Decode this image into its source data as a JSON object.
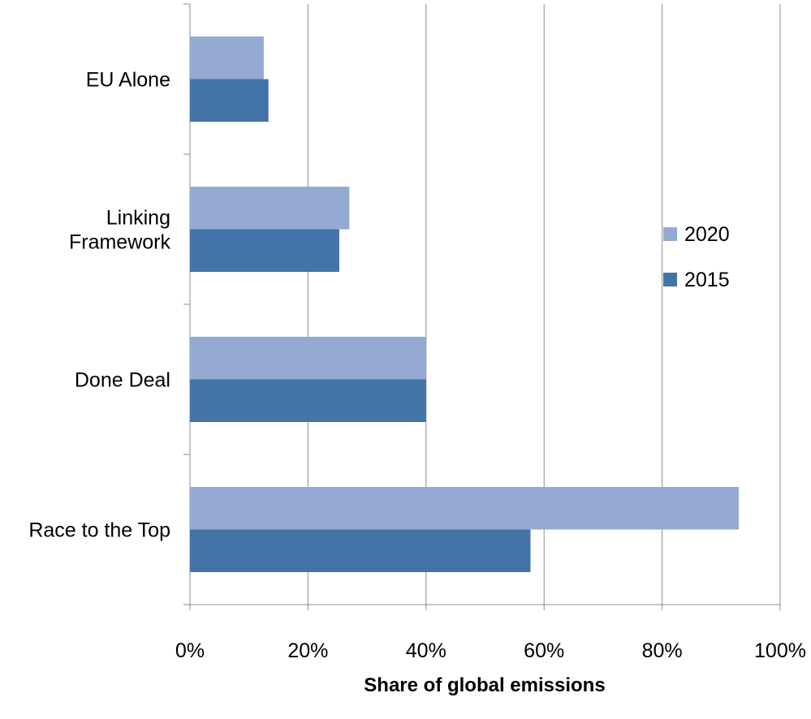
{
  "chart_data": {
    "type": "bar",
    "orientation": "horizontal",
    "title": "",
    "xlabel": "Share of global emissions",
    "ylabel": "",
    "xlim": [
      0,
      100
    ],
    "x_ticks": [
      "0%",
      "20%",
      "40%",
      "60%",
      "80%",
      "100%"
    ],
    "grid": "vertical",
    "legend_position": "right",
    "categories": [
      [
        "EU Alone"
      ],
      [
        "Linking",
        "Framework"
      ],
      [
        "Done Deal"
      ],
      [
        "Race to the Top"
      ]
    ],
    "series": [
      {
        "name": "2020",
        "color": "#95aad2",
        "values": [
          12.5,
          27,
          40,
          93
        ]
      },
      {
        "name": "2015",
        "color": "#4473a7",
        "values": [
          13.3,
          25.3,
          40,
          57.7
        ]
      }
    ]
  }
}
